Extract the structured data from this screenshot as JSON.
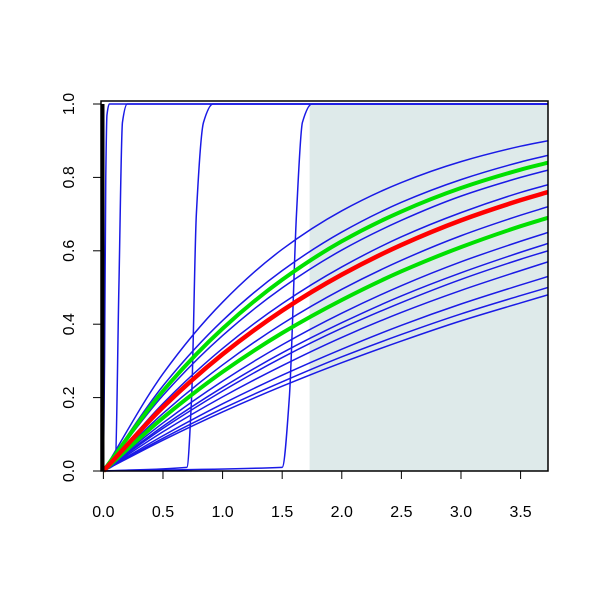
{
  "chart_data": {
    "type": "line",
    "xlim": [
      -0.02,
      3.73
    ],
    "ylim": [
      0,
      1
    ],
    "xticks": [
      {
        "value": 0,
        "label": "0.0"
      },
      0.5,
      {
        "value": 1,
        "label": "1.0"
      },
      1.5,
      {
        "value": 2,
        "label": "2.0"
      },
      2.5,
      {
        "value": 3,
        "label": "3.0"
      },
      3.5
    ],
    "yticks": [
      {
        "value": 0,
        "label": "0.0"
      },
      0.2,
      0.4,
      0.6,
      0.8,
      {
        "value": 1,
        "label": "1.0"
      }
    ],
    "shaded_region": {
      "x": [
        1.73,
        3.73
      ],
      "y": [
        0,
        1
      ],
      "color": "#deeaea"
    },
    "series": [
      {
        "color": "#1a1ae6",
        "width": 1.5,
        "x": [
          0,
          0.01,
          0.02,
          0.03,
          0.05,
          3.73
        ],
        "values": [
          0,
          0.3,
          0.8,
          0.97,
          1,
          1
        ]
      },
      {
        "color": "#1a1ae6",
        "width": 1.5,
        "x": [
          0,
          0.1,
          0.13,
          0.16,
          0.2,
          3.73
        ],
        "values": [
          0,
          0.02,
          0.5,
          0.95,
          1,
          1
        ]
      },
      {
        "color": "#1a1ae6",
        "width": 1.5,
        "x": [
          0,
          0.7,
          0.74,
          0.78,
          0.84,
          0.92,
          3.73
        ],
        "values": [
          0,
          0.01,
          0.2,
          0.7,
          0.95,
          1,
          1
        ]
      },
      {
        "color": "#1a1ae6",
        "width": 1.5,
        "x": [
          0,
          1.5,
          1.56,
          1.62,
          1.67,
          1.75,
          3.73
        ],
        "values": [
          0,
          0.01,
          0.2,
          0.7,
          0.95,
          1,
          1
        ]
      },
      {
        "color": "#1a1ae6",
        "width": 1.5,
        "x": [
          0,
          0.5,
          1,
          1.5,
          2,
          2.5,
          3,
          3.5,
          3.73
        ],
        "values": [
          0,
          0.265,
          0.46,
          0.604,
          0.709,
          0.786,
          0.843,
          0.885,
          0.9
        ]
      },
      {
        "color": "#1a1ae6",
        "width": 1.5,
        "x": [
          0,
          0.5,
          1,
          1.5,
          2,
          2.5,
          3,
          3.5,
          3.73
        ],
        "values": [
          0,
          0.232,
          0.41,
          0.546,
          0.651,
          0.732,
          0.794,
          0.842,
          0.86
        ]
      },
      {
        "color": "#1a1ae6",
        "width": 1.5,
        "x": [
          0,
          0.5,
          1,
          1.5,
          2,
          2.5,
          3,
          3.5,
          3.73
        ],
        "values": [
          0,
          0.206,
          0.369,
          0.499,
          0.602,
          0.683,
          0.749,
          0.8,
          0.82
        ]
      },
      {
        "color": "#1a1ae6",
        "width": 1.5,
        "x": [
          0,
          0.5,
          1,
          1.5,
          2,
          2.5,
          3,
          3.5,
          3.73
        ],
        "values": [
          0,
          0.184,
          0.334,
          0.456,
          0.556,
          0.638,
          0.704,
          0.759,
          0.78
        ]
      },
      {
        "color": "#1a1ae6",
        "width": 1.5,
        "x": [
          0,
          0.5,
          1,
          1.5,
          2,
          2.5,
          3,
          3.5,
          3.73
        ],
        "values": [
          0,
          0.157,
          0.289,
          0.401,
          0.495,
          0.574,
          0.641,
          0.697,
          0.72
        ]
      },
      {
        "color": "#1a1ae6",
        "width": 1.5,
        "x": [
          0,
          0.5,
          1,
          1.5,
          2,
          2.5,
          3,
          3.5,
          3.73
        ],
        "values": [
          0,
          0.131,
          0.245,
          0.344,
          0.43,
          0.505,
          0.57,
          0.626,
          0.65
        ]
      },
      {
        "color": "#1a1ae6",
        "width": 1.5,
        "x": [
          0,
          0.5,
          1,
          1.5,
          2,
          2.5,
          3,
          3.5,
          3.73
        ],
        "values": [
          0,
          0.122,
          0.228,
          0.322,
          0.404,
          0.477,
          0.54,
          0.596,
          0.62
        ]
      },
      {
        "color": "#1a1ae6",
        "width": 1.5,
        "x": [
          0,
          0.5,
          1,
          1.5,
          2,
          2.5,
          3,
          3.5,
          3.73
        ],
        "values": [
          0,
          0.116,
          0.218,
          0.309,
          0.389,
          0.459,
          0.522,
          0.577,
          0.6
        ]
      },
      {
        "color": "#1a1ae6",
        "width": 1.5,
        "x": [
          0,
          0.5,
          1,
          1.5,
          2,
          2.5,
          3,
          3.5,
          3.73
        ],
        "values": [
          0,
          0.107,
          0.202,
          0.287,
          0.364,
          0.432,
          0.492,
          0.546,
          0.57
        ]
      },
      {
        "color": "#1a1ae6",
        "width": 1.5,
        "x": [
          0,
          0.5,
          1,
          1.5,
          2,
          2.5,
          3,
          3.5,
          3.73
        ],
        "values": [
          0,
          0.096,
          0.183,
          0.261,
          0.332,
          0.397,
          0.455,
          0.507,
          0.53
        ]
      },
      {
        "color": "#1a1ae6",
        "width": 1.5,
        "x": [
          0,
          0.5,
          1,
          1.5,
          2,
          2.5,
          3,
          3.5,
          3.73
        ],
        "values": [
          0,
          0.089,
          0.17,
          0.243,
          0.311,
          0.372,
          0.428,
          0.478,
          0.5
        ]
      },
      {
        "color": "#1a1ae6",
        "width": 1.5,
        "x": [
          0,
          0.5,
          1,
          1.5,
          2,
          2.5,
          3,
          3.5,
          3.73
        ],
        "values": [
          0,
          0.084,
          0.161,
          0.231,
          0.295,
          0.354,
          0.409,
          0.458,
          0.48
        ]
      },
      {
        "color": "#00e000",
        "width": 4,
        "x": [
          0,
          0.5,
          1,
          1.5,
          2,
          2.5,
          3,
          3.5,
          3.73
        ],
        "values": [
          0,
          0.218,
          0.388,
          0.521,
          0.626,
          0.707,
          0.771,
          0.821,
          0.84
        ]
      },
      {
        "color": "#00e000",
        "width": 4,
        "x": [
          0,
          0.5,
          1,
          1.5,
          2,
          2.5,
          3,
          3.5,
          3.73
        ],
        "values": [
          0,
          0.145,
          0.27,
          0.376,
          0.466,
          0.544,
          0.61,
          0.667,
          0.69
        ]
      },
      {
        "color": "#ff0000",
        "width": 4.5,
        "x": [
          0,
          0.5,
          1,
          1.5,
          2,
          2.5,
          3,
          3.5,
          3.73
        ],
        "values": [
          0,
          0.174,
          0.318,
          0.437,
          0.535,
          0.616,
          0.683,
          0.738,
          0.76
        ]
      }
    ]
  }
}
